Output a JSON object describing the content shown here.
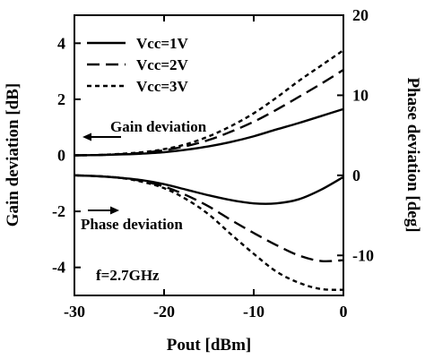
{
  "chart_data": {
    "type": "line",
    "xlabel": "Pout [dBm]",
    "ylabel_left": "Gain deviation [dB]",
    "ylabel_right": "Phase deviation [deg]",
    "xlim": [
      -30,
      0
    ],
    "ylim_left": [
      -5,
      5
    ],
    "ylim_right": [
      -15,
      20
    ],
    "x_ticks": [
      -30,
      -20,
      -10,
      0
    ],
    "y_ticks_left": [
      4,
      2,
      0,
      -2,
      -4
    ],
    "y_ticks_right": [
      20,
      10,
      0,
      -10
    ],
    "y_tick_labels_left": [
      "4",
      "2",
      "0",
      "-2",
      "-4"
    ],
    "y_tick_labels_right": [
      "20",
      "10",
      "0",
      "-10"
    ],
    "x_tick_labels": [
      "-30",
      "-20",
      "-10",
      "0"
    ],
    "legend": {
      "placement": "top-left",
      "entries": [
        "Vcc=1V",
        "Vcc=2V",
        "Vcc=3V"
      ]
    },
    "annotations": {
      "gain": "Gain deviation",
      "phase": "Phase deviation",
      "freq": "f=2.7GHz"
    },
    "x": [
      -30,
      -27.5,
      -25,
      -22.5,
      -20,
      -17.5,
      -15,
      -12.5,
      -10,
      -7.5,
      -5,
      -2.5,
      0
    ],
    "series": [
      {
        "name": "Vcc=1V",
        "style": "solid",
        "gain_db": [
          0.0,
          0.01,
          0.03,
          0.06,
          0.11,
          0.2,
          0.32,
          0.48,
          0.68,
          0.92,
          1.15,
          1.4,
          1.65
        ],
        "phase_deg": [
          0.0,
          -0.1,
          -0.3,
          -0.6,
          -1.1,
          -1.8,
          -2.5,
          -3.1,
          -3.5,
          -3.5,
          -3.0,
          -1.8,
          -0.2
        ]
      },
      {
        "name": "Vcc=2V",
        "style": "dashed",
        "gain_db": [
          0.0,
          0.01,
          0.04,
          0.09,
          0.18,
          0.33,
          0.55,
          0.85,
          1.2,
          1.62,
          2.08,
          2.55,
          3.05
        ],
        "phase_deg": [
          0.0,
          -0.1,
          -0.3,
          -0.7,
          -1.4,
          -2.5,
          -3.9,
          -5.6,
          -7.2,
          -8.7,
          -10.0,
          -10.7,
          -10.6
        ]
      },
      {
        "name": "Vcc=3V",
        "style": "dotted",
        "gain_db": [
          0.0,
          0.01,
          0.05,
          0.11,
          0.22,
          0.4,
          0.68,
          1.05,
          1.5,
          2.05,
          2.65,
          3.2,
          3.75
        ],
        "phase_deg": [
          0.0,
          -0.1,
          -0.3,
          -0.8,
          -1.6,
          -3.0,
          -4.9,
          -7.4,
          -9.8,
          -12.0,
          -13.4,
          -14.2,
          -14.3
        ]
      }
    ]
  }
}
